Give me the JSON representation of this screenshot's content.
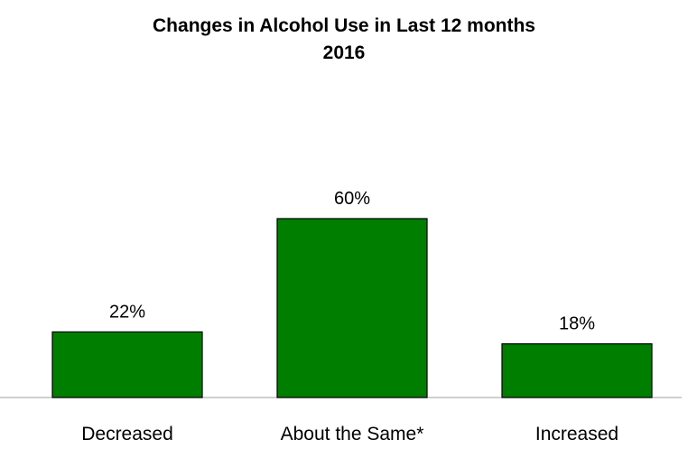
{
  "chart_data": {
    "type": "bar",
    "title": "Changes in Alcohol Use in Last 12 months",
    "subtitle": "2016",
    "categories": [
      "Decreased",
      "About the Same*",
      "Increased"
    ],
    "values": [
      22,
      60,
      18
    ],
    "data_labels": [
      "22%",
      "60%",
      "18%"
    ],
    "xlabel": "",
    "ylabel": "",
    "ylim": [
      0,
      100
    ],
    "grid": false,
    "legend": "none",
    "bar_color": "#007e00",
    "bar_edge_color": "#000000",
    "axis_color": "#bfbfbf"
  }
}
